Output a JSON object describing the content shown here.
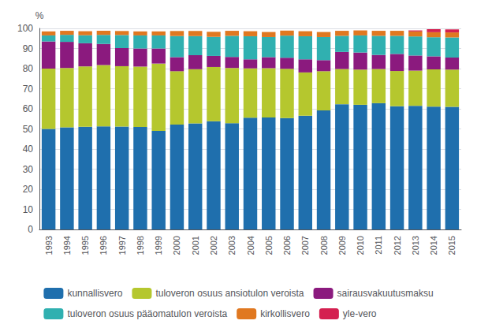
{
  "chart_data": {
    "type": "bar",
    "stacked": true,
    "ylabel": "%",
    "categories": [
      "1993",
      "1994",
      "1995",
      "1996",
      "1997",
      "1998",
      "1999",
      "2000",
      "2001",
      "2002",
      "2003",
      "2004",
      "2005",
      "2006",
      "2007",
      "2008",
      "2009",
      "2010",
      "2011",
      "2012",
      "2013",
      "2014",
      "2015"
    ],
    "series": [
      {
        "name": "kunnallisvero",
        "color": "#1f6fad",
        "values": [
          50.0,
          50.8,
          51.1,
          51.3,
          51.2,
          51.0,
          49.0,
          52.2,
          52.7,
          53.8,
          52.8,
          55.6,
          55.7,
          55.4,
          56.6,
          59.2,
          62.3,
          62.0,
          62.8,
          61.3,
          61.5,
          61.1,
          61.0
        ]
      },
      {
        "name": "tuloveron osuus ansiotulon veroista",
        "color": "#b5c72e",
        "values": [
          30.0,
          29.5,
          30.0,
          30.5,
          30.0,
          30.0,
          33.5,
          26.5,
          27.0,
          27.0,
          27.5,
          24.5,
          24.5,
          24.5,
          21.5,
          19.5,
          17.5,
          17.5,
          17.0,
          17.5,
          17.5,
          18.5,
          18.5
        ]
      },
      {
        "name": "sairausvakuutusmaksu",
        "color": "#8b1a7e",
        "values": [
          13.5,
          13.0,
          11.5,
          10.5,
          9.0,
          9.0,
          7.5,
          7.0,
          7.0,
          5.5,
          5.5,
          4.5,
          5.5,
          5.5,
          6.5,
          5.5,
          8.5,
          8.5,
          7.0,
          8.5,
          7.5,
          6.5,
          6.0
        ]
      },
      {
        "name": "tuloveron osuus pääomatulon veroista",
        "color": "#30b0b0",
        "values": [
          3.0,
          3.5,
          4.0,
          4.5,
          6.5,
          6.5,
          6.5,
          10.5,
          9.5,
          9.5,
          10.5,
          11.5,
          10.0,
          11.0,
          11.5,
          11.5,
          8.0,
          8.5,
          9.5,
          9.0,
          9.5,
          9.5,
          10.0
        ]
      },
      {
        "name": "kirkollisvero",
        "color": "#e07820",
        "values": [
          2.0,
          2.0,
          2.0,
          2.0,
          2.0,
          2.0,
          2.0,
          2.5,
          2.5,
          2.5,
          2.5,
          2.5,
          2.5,
          2.5,
          2.5,
          2.5,
          2.5,
          2.5,
          2.5,
          2.5,
          2.5,
          2.5,
          2.5
        ]
      },
      {
        "name": "yle-vero",
        "color": "#d42050",
        "values": [
          0.0,
          0.0,
          0.0,
          0.0,
          0.0,
          0.0,
          0.0,
          0.0,
          0.0,
          0.0,
          0.0,
          0.0,
          0.0,
          0.0,
          0.0,
          0.0,
          0.0,
          0.0,
          0.0,
          0.0,
          0.5,
          1.5,
          1.5
        ]
      }
    ],
    "ylim": [
      0,
      100
    ],
    "yticks": [
      0,
      10,
      20,
      30,
      40,
      50,
      60,
      70,
      80,
      90,
      100
    ],
    "grid": true,
    "legend": "bottom"
  }
}
